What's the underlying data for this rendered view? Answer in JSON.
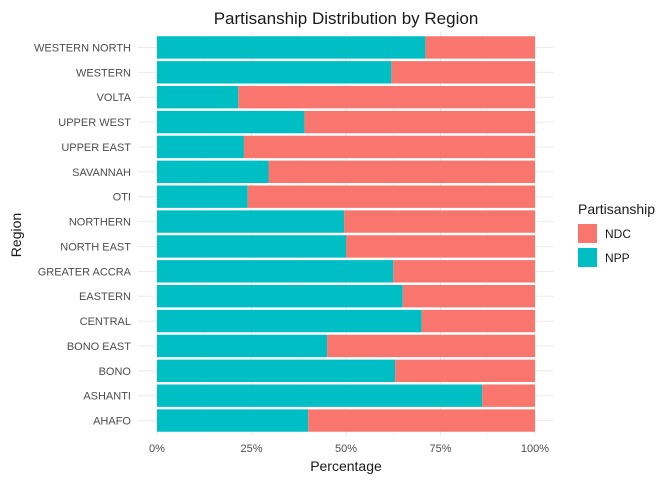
{
  "chart_data": {
    "type": "bar",
    "orientation": "horizontal",
    "stacked": "percent",
    "title": "Partisanship Distribution by Region",
    "xlabel": "Percentage",
    "ylabel": "Region",
    "xlim": [
      0,
      1
    ],
    "x_ticks": [
      "0%",
      "25%",
      "50%",
      "75%",
      "100%"
    ],
    "grid": true,
    "legend": {
      "title": "Partisanship",
      "position": "right",
      "entries": [
        "NDC",
        "NPP"
      ]
    },
    "categories": [
      "AHAFO",
      "ASHANTI",
      "BONO",
      "BONO EAST",
      "CENTRAL",
      "EASTERN",
      "GREATER ACCRA",
      "NORTH EAST",
      "NORTHERN",
      "OTI",
      "SAVANNAH",
      "UPPER EAST",
      "UPPER WEST",
      "VOLTA",
      "WESTERN",
      "WESTERN NORTH"
    ],
    "series": [
      {
        "name": "NPP",
        "color": "#00BFC4",
        "values": [
          0.4,
          0.86,
          0.63,
          0.45,
          0.7,
          0.65,
          0.625,
          0.5,
          0.495,
          0.24,
          0.295,
          0.23,
          0.39,
          0.215,
          0.62,
          0.71
        ]
      },
      {
        "name": "NDC",
        "color": "#F8766D",
        "values": [
          0.6,
          0.14,
          0.37,
          0.55,
          0.3,
          0.35,
          0.375,
          0.5,
          0.505,
          0.76,
          0.705,
          0.77,
          0.61,
          0.785,
          0.38,
          0.29
        ]
      }
    ]
  }
}
